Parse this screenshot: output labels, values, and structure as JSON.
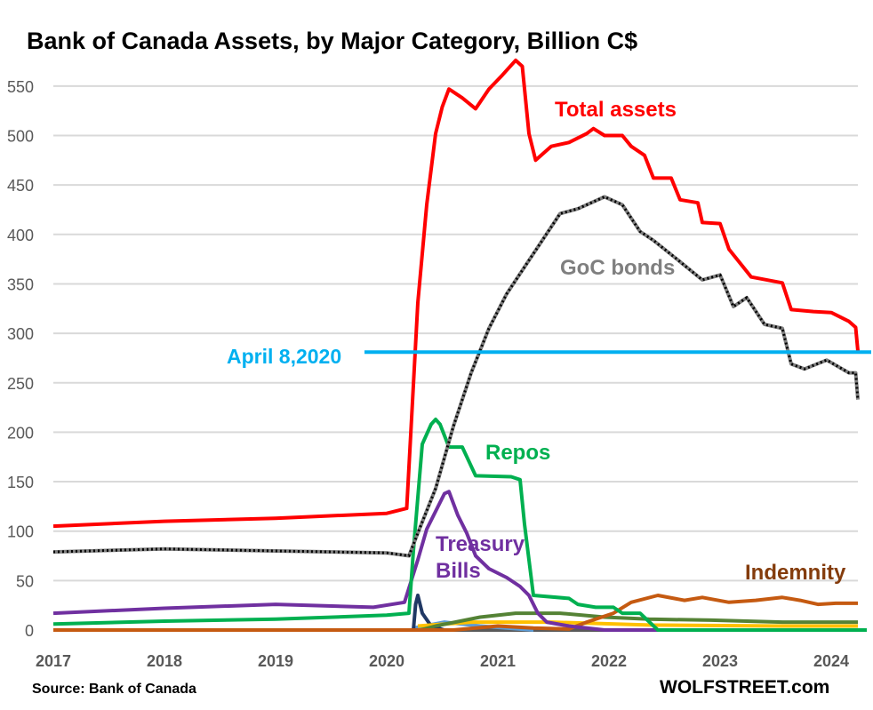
{
  "chart_data": {
    "type": "line",
    "title": "Bank of Canada Assets, by Major Category, Billion C$",
    "source": "Source: Bank of Canada",
    "watermark": "WOLFSTREET.com",
    "xlabel": "",
    "ylabel": "",
    "xlim": [
      2017,
      2024.32
    ],
    "ylim": [
      0,
      575
    ],
    "x_ticks": [
      "2017",
      "2018",
      "2019",
      "2020",
      "2021",
      "2022",
      "2023",
      "2024"
    ],
    "y_ticks": [
      0,
      50,
      100,
      150,
      200,
      250,
      300,
      350,
      400,
      450,
      500,
      550
    ],
    "grid": "horizontal",
    "annotation": {
      "label": "April 8,2020",
      "value": 281,
      "color": "#00b0f0"
    },
    "series": [
      {
        "name": "Total assets",
        "color": "#ff0000",
        "label_color": "#ff0000",
        "dotted": false,
        "points": [
          [
            2017,
            105
          ],
          [
            2018,
            110
          ],
          [
            2019,
            113
          ],
          [
            2020,
            118
          ],
          [
            2020.18,
            123
          ],
          [
            2020.22,
            206
          ],
          [
            2020.28,
            331
          ],
          [
            2020.36,
            430
          ],
          [
            2020.44,
            502
          ],
          [
            2020.5,
            529
          ],
          [
            2020.56,
            547
          ],
          [
            2020.68,
            538
          ],
          [
            2020.8,
            527
          ],
          [
            2020.92,
            547
          ],
          [
            2021.04,
            561
          ],
          [
            2021.16,
            576
          ],
          [
            2021.22,
            570
          ],
          [
            2021.28,
            502
          ],
          [
            2021.34,
            475
          ],
          [
            2021.48,
            489
          ],
          [
            2021.64,
            493
          ],
          [
            2021.8,
            502
          ],
          [
            2021.86,
            507
          ],
          [
            2021.96,
            500
          ],
          [
            2022.12,
            500
          ],
          [
            2022.2,
            489
          ],
          [
            2022.32,
            480
          ],
          [
            2022.4,
            457
          ],
          [
            2022.56,
            457
          ],
          [
            2022.64,
            435
          ],
          [
            2022.8,
            432
          ],
          [
            2022.84,
            412
          ],
          [
            2023,
            411
          ],
          [
            2023.08,
            385
          ],
          [
            2023.28,
            357
          ],
          [
            2023.56,
            351
          ],
          [
            2023.64,
            324
          ],
          [
            2023.84,
            322
          ],
          [
            2024,
            321
          ],
          [
            2024.16,
            312
          ],
          [
            2024.22,
            306
          ],
          [
            2024.24,
            282
          ]
        ]
      },
      {
        "name": "GoC bonds",
        "color": "#7f7f7f",
        "label_color": "#7f7f7f",
        "dotted": true,
        "points": [
          [
            2017,
            79
          ],
          [
            2018,
            82
          ],
          [
            2019,
            80
          ],
          [
            2020,
            78
          ],
          [
            2020.2,
            75
          ],
          [
            2020.28,
            98
          ],
          [
            2020.44,
            143
          ],
          [
            2020.6,
            206
          ],
          [
            2020.76,
            260
          ],
          [
            2020.92,
            305
          ],
          [
            2021.08,
            340
          ],
          [
            2021.24,
            367
          ],
          [
            2021.4,
            394
          ],
          [
            2021.56,
            421
          ],
          [
            2021.72,
            426
          ],
          [
            2021.96,
            438
          ],
          [
            2022.12,
            430
          ],
          [
            2022.28,
            403
          ],
          [
            2022.4,
            394
          ],
          [
            2022.6,
            376
          ],
          [
            2022.84,
            354
          ],
          [
            2023,
            359
          ],
          [
            2023.12,
            327
          ],
          [
            2023.24,
            336
          ],
          [
            2023.4,
            309
          ],
          [
            2023.56,
            305
          ],
          [
            2023.64,
            269
          ],
          [
            2023.76,
            264
          ],
          [
            2023.96,
            273
          ],
          [
            2024.16,
            260
          ],
          [
            2024.22,
            260
          ],
          [
            2024.24,
            233
          ]
        ]
      },
      {
        "name": "Repos",
        "color": "#00b050",
        "label_color": "#00b050",
        "dotted": false,
        "points": [
          [
            2017,
            6
          ],
          [
            2018,
            9
          ],
          [
            2019,
            11
          ],
          [
            2020,
            15
          ],
          [
            2020.2,
            17
          ],
          [
            2020.24,
            80
          ],
          [
            2020.32,
            188
          ],
          [
            2020.4,
            208
          ],
          [
            2020.44,
            213
          ],
          [
            2020.48,
            208
          ],
          [
            2020.56,
            185
          ],
          [
            2020.68,
            185
          ],
          [
            2020.8,
            156
          ],
          [
            2021.12,
            155
          ],
          [
            2021.2,
            152
          ],
          [
            2021.24,
            107
          ],
          [
            2021.32,
            35
          ],
          [
            2021.64,
            32
          ],
          [
            2021.72,
            26
          ],
          [
            2021.88,
            23
          ],
          [
            2022.04,
            23
          ],
          [
            2022.12,
            17
          ],
          [
            2022.28,
            17
          ],
          [
            2022.44,
            0
          ],
          [
            2024.32,
            0
          ]
        ]
      },
      {
        "name": "Treasury Bills",
        "color": "#7030a0",
        "label_color": "#7030a0",
        "dotted": false,
        "points": [
          [
            2017,
            17
          ],
          [
            2018,
            22
          ],
          [
            2019,
            26
          ],
          [
            2019.88,
            23
          ],
          [
            2020.16,
            28
          ],
          [
            2020.28,
            71
          ],
          [
            2020.36,
            102
          ],
          [
            2020.52,
            138
          ],
          [
            2020.56,
            140
          ],
          [
            2020.64,
            116
          ],
          [
            2020.72,
            98
          ],
          [
            2020.8,
            75
          ],
          [
            2020.92,
            62
          ],
          [
            2021.08,
            53
          ],
          [
            2021.2,
            44
          ],
          [
            2021.28,
            35
          ],
          [
            2021.36,
            17
          ],
          [
            2021.44,
            8
          ],
          [
            2021.64,
            4
          ],
          [
            2021.96,
            0
          ],
          [
            2024.32,
            0
          ]
        ]
      },
      {
        "name": "Indemnity",
        "color": "#c55a11",
        "label_color": "#843c0c",
        "dotted": false,
        "points": [
          [
            2017,
            0
          ],
          [
            2020.6,
            0
          ],
          [
            2021,
            4
          ],
          [
            2021.32,
            2
          ],
          [
            2021.64,
            1
          ],
          [
            2021.8,
            8
          ],
          [
            2022.04,
            17
          ],
          [
            2022.2,
            28
          ],
          [
            2022.44,
            35
          ],
          [
            2022.68,
            30
          ],
          [
            2022.84,
            33
          ],
          [
            2023.08,
            28
          ],
          [
            2023.32,
            30
          ],
          [
            2023.56,
            33
          ],
          [
            2023.72,
            30
          ],
          [
            2023.88,
            26
          ],
          [
            2024.04,
            27
          ],
          [
            2024.24,
            27
          ]
        ]
      },
      {
        "color": "#548235",
        "dotted": false,
        "points": [
          [
            2017,
            0
          ],
          [
            2020.3,
            0
          ],
          [
            2020.44,
            4
          ],
          [
            2020.84,
            13
          ],
          [
            2021.16,
            17
          ],
          [
            2021.56,
            17
          ],
          [
            2021.96,
            13
          ],
          [
            2022.36,
            11
          ],
          [
            2022.92,
            10
          ],
          [
            2023.56,
            8
          ],
          [
            2024.24,
            8
          ]
        ]
      },
      {
        "color": "#ffc000",
        "dotted": false,
        "points": [
          [
            2020.28,
            4
          ],
          [
            2020.76,
            8
          ],
          [
            2021.48,
            8
          ],
          [
            2022.36,
            5
          ],
          [
            2023.56,
            4
          ],
          [
            2024.24,
            4
          ]
        ]
      },
      {
        "color": "#5b9bd5",
        "dotted": false,
        "points": [
          [
            2020.24,
            2
          ],
          [
            2020.52,
            8
          ],
          [
            2020.84,
            4
          ],
          [
            2021.32,
            0
          ]
        ]
      },
      {
        "color": "#203864",
        "dotted": false,
        "points": [
          [
            2020.24,
            0
          ],
          [
            2020.26,
            26
          ],
          [
            2020.28,
            35
          ],
          [
            2020.32,
            17
          ],
          [
            2020.4,
            4
          ],
          [
            2020.52,
            0
          ]
        ]
      },
      {
        "color": "#595959",
        "dotted": false,
        "points": [
          [
            2017,
            0
          ],
          [
            2024.32,
            0
          ]
        ]
      }
    ]
  }
}
